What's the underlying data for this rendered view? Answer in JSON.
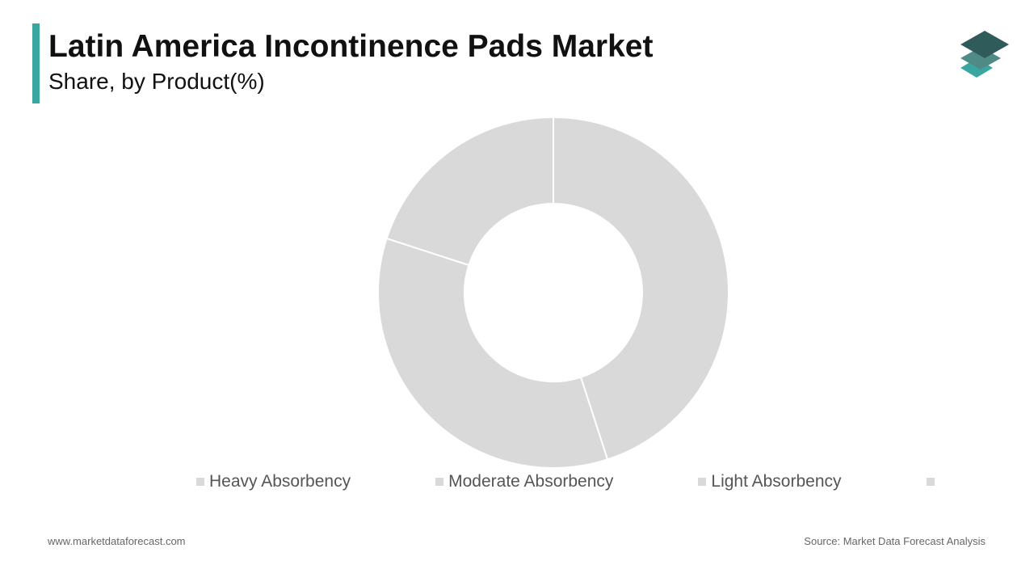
{
  "chart_data": {
    "type": "pie",
    "title": "Latin America Incontinence Pads Market",
    "subtitle": "Share, by Product(%)",
    "categories": [
      "Heavy Absorbency",
      "Moderate Absorbency",
      "Light Absorbency"
    ],
    "values": [
      45,
      35,
      20
    ],
    "colors": [
      "#d9d9d9",
      "#d9d9d9",
      "#d9d9d9"
    ]
  },
  "footer": {
    "website": "www.marketdataforecast.com",
    "source": "Source: Market Data Forecast Analysis"
  }
}
